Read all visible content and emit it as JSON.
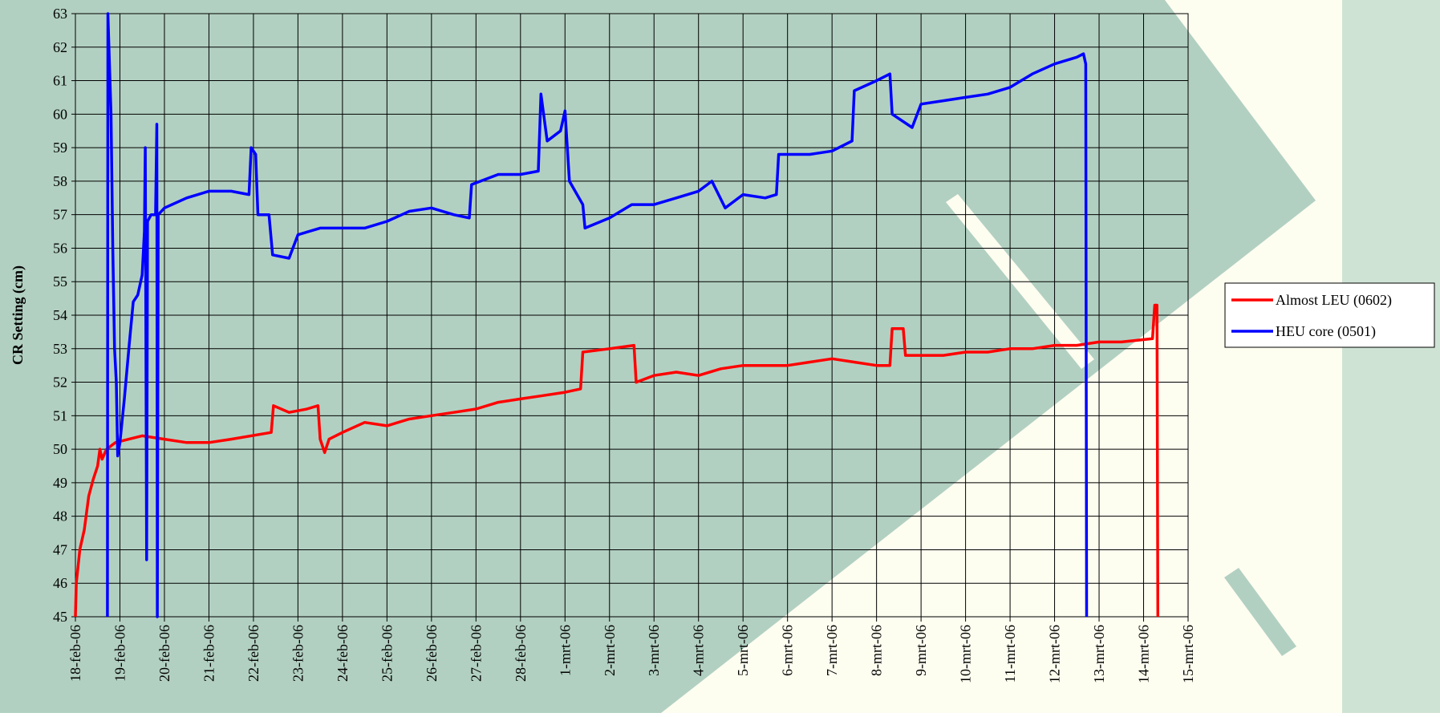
{
  "chart_data": {
    "type": "line",
    "ylabel": "CR Setting (cm)",
    "ylim": [
      45,
      63
    ],
    "yticks": [
      45,
      46,
      47,
      48,
      49,
      50,
      51,
      52,
      53,
      54,
      55,
      56,
      57,
      58,
      59,
      60,
      61,
      62,
      63
    ],
    "xlim": [
      0,
      25
    ],
    "xticks": [
      {
        "value": 0,
        "label": "18-feb-06"
      },
      {
        "value": 1,
        "label": "19-feb-06"
      },
      {
        "value": 2,
        "label": "20-feb-06"
      },
      {
        "value": 3,
        "label": "21-feb-06"
      },
      {
        "value": 4,
        "label": "22-feb-06"
      },
      {
        "value": 5,
        "label": "23-feb-06"
      },
      {
        "value": 6,
        "label": "24-feb-06"
      },
      {
        "value": 7,
        "label": "25-feb-06"
      },
      {
        "value": 8,
        "label": "26-feb-06"
      },
      {
        "value": 9,
        "label": "27-feb-06"
      },
      {
        "value": 10,
        "label": "28-feb-06"
      },
      {
        "value": 11,
        "label": "1-mrt-06"
      },
      {
        "value": 12,
        "label": "2-mrt-06"
      },
      {
        "value": 13,
        "label": "3-mrt-06"
      },
      {
        "value": 14,
        "label": "4-mrt-06"
      },
      {
        "value": 15,
        "label": "5-mrt-06"
      },
      {
        "value": 16,
        "label": "6-mrt-06"
      },
      {
        "value": 17,
        "label": "7-mrt-06"
      },
      {
        "value": 18,
        "label": "8-mrt-06"
      },
      {
        "value": 19,
        "label": "9-mrt-06"
      },
      {
        "value": 20,
        "label": "10-mrt-06"
      },
      {
        "value": 21,
        "label": "11-mrt-06"
      },
      {
        "value": 22,
        "label": "12-mrt-06"
      },
      {
        "value": 23,
        "label": "13-mrt-06"
      },
      {
        "value": 24,
        "label": "14-mrt-06"
      },
      {
        "value": 25,
        "label": "15-mrt-06"
      }
    ],
    "grid": true,
    "legend": "right",
    "series": [
      {
        "name": "Almost LEU (0602)",
        "color": "#ff0000",
        "x": [
          0,
          0.02,
          0.1,
          0.2,
          0.3,
          0.4,
          0.5,
          0.55,
          0.6,
          0.7,
          0.9,
          1.2,
          1.5,
          2,
          2.5,
          3,
          3.5,
          4.4,
          4.45,
          4.8,
          5.2,
          5.45,
          5.5,
          5.6,
          5.7,
          6,
          6.5,
          7,
          7.5,
          8,
          8.5,
          9,
          9.5,
          10,
          10.5,
          11,
          11.35,
          11.4,
          12,
          12.55,
          12.6,
          13,
          13.5,
          14,
          14.5,
          15,
          15.5,
          16,
          16.5,
          17,
          17.5,
          18,
          18.3,
          18.35,
          18.6,
          18.65,
          19,
          19.5,
          20,
          20.5,
          21,
          21.5,
          22,
          22.5,
          23,
          23.5,
          24.2,
          24.25,
          24.3,
          24.32
        ],
        "values": [
          45,
          46,
          47,
          47.6,
          48.6,
          49.1,
          49.5,
          50,
          49.7,
          50,
          50.2,
          50.3,
          50.4,
          50.3,
          50.2,
          50.2,
          50.3,
          50.5,
          51.3,
          51.1,
          51.2,
          51.3,
          50.3,
          49.9,
          50.3,
          50.5,
          50.8,
          50.7,
          50.9,
          51,
          51.1,
          51.2,
          51.4,
          51.5,
          51.6,
          51.7,
          51.8,
          52.9,
          53,
          53.1,
          52,
          52.2,
          52.3,
          52.2,
          52.4,
          52.5,
          52.5,
          52.5,
          52.6,
          52.7,
          52.6,
          52.5,
          52.5,
          53.6,
          53.6,
          52.8,
          52.8,
          52.8,
          52.9,
          52.9,
          53,
          53,
          53.1,
          53.1,
          53.2,
          53.2,
          53.3,
          54.3,
          54.3,
          45
        ]
      },
      {
        "name": "HEU core (0501)",
        "color": "#0000ff",
        "x": [
          0.72,
          0.73,
          0.8,
          0.84,
          0.88,
          0.92,
          0.95,
          1.0,
          1.1,
          1.2,
          1.3,
          1.4,
          1.5,
          1.55,
          1.57,
          1.6,
          1.62,
          1.7,
          1.8,
          1.83,
          1.84,
          1.86,
          2,
          2.5,
          3,
          3.5,
          3.9,
          3.95,
          4.05,
          4.1,
          4.35,
          4.43,
          4.8,
          5,
          5.5,
          6,
          6.5,
          7,
          7.5,
          8,
          8.5,
          8.85,
          8.9,
          9.5,
          10,
          10.4,
          10.46,
          10.6,
          10.9,
          11,
          11.1,
          11.4,
          11.45,
          12,
          12.5,
          13,
          13.5,
          14,
          14.3,
          14.6,
          15,
          15.5,
          15.75,
          15.8,
          16.5,
          17,
          17.45,
          17.5,
          18,
          18.3,
          18.35,
          18.8,
          19,
          19.5,
          20,
          20.5,
          21,
          21.5,
          22,
          22.5,
          22.65,
          22.7,
          22.72
        ],
        "values": [
          45,
          63,
          60,
          56,
          53,
          52,
          49.8,
          50.2,
          51.5,
          53,
          54.4,
          54.6,
          55.2,
          56.5,
          59,
          46.7,
          56.8,
          57,
          57,
          59.7,
          45,
          57,
          57.2,
          57.5,
          57.7,
          57.7,
          57.6,
          59,
          58.8,
          57,
          57,
          55.8,
          55.7,
          56.4,
          56.6,
          56.6,
          56.6,
          56.8,
          57.1,
          57.2,
          57,
          56.9,
          57.9,
          58.2,
          58.2,
          58.3,
          60.6,
          59.2,
          59.5,
          60.1,
          58,
          57.3,
          56.6,
          56.9,
          57.3,
          57.3,
          57.5,
          57.7,
          58,
          57.2,
          57.6,
          57.5,
          57.6,
          58.8,
          58.8,
          58.9,
          59.2,
          60.7,
          61,
          61.2,
          60,
          59.6,
          60.3,
          60.4,
          60.5,
          60.6,
          60.8,
          61.2,
          61.5,
          61.7,
          61.8,
          61.5,
          45
        ]
      }
    ]
  }
}
